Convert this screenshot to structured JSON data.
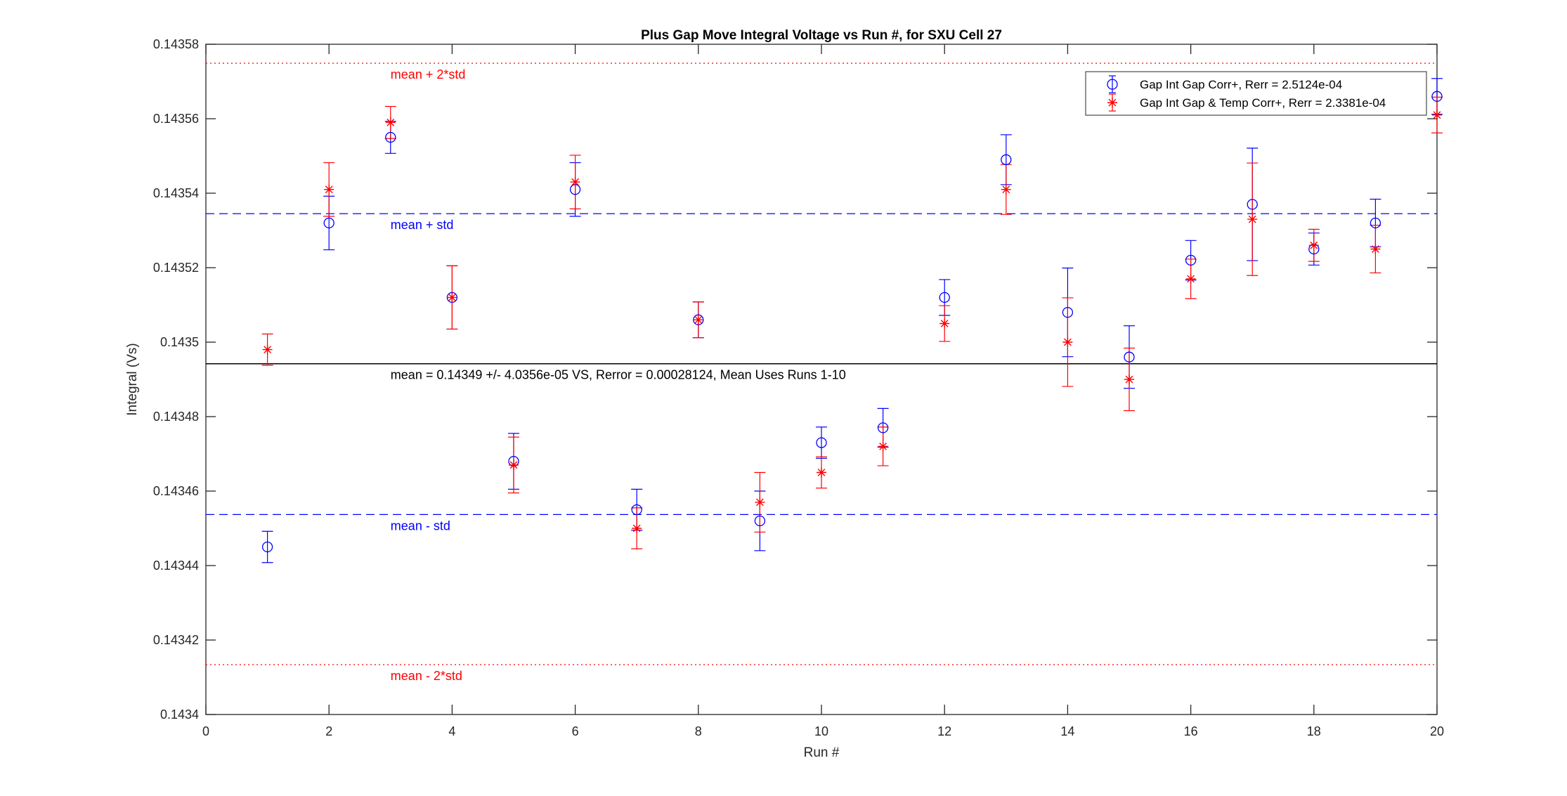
{
  "chart_data": {
    "type": "scatter",
    "title": "Plus Gap Move Integral Voltage vs Run #, for SXU Cell 27",
    "xlabel": "Run #",
    "ylabel": "Integral (Vs)",
    "xlim": [
      0,
      20
    ],
    "ylim": [
      0.1434,
      0.14358
    ],
    "xticks": [
      0,
      2,
      4,
      6,
      8,
      10,
      12,
      14,
      16,
      18,
      20
    ],
    "yticks": [
      0.1434,
      0.14342,
      0.14344,
      0.14346,
      0.14348,
      0.1435,
      0.14352,
      0.14354,
      0.14356,
      0.14358
    ],
    "ytick_labels": [
      "0.1434",
      "0.14342",
      "0.14344",
      "0.14346",
      "0.14348",
      "0.1435",
      "0.14352",
      "0.14354",
      "0.14356",
      "0.14358"
    ],
    "grid": false,
    "legend_position": "top-right",
    "series": [
      {
        "name": "Gap Int Gap Corr+, Rerr = 2.5124e-04",
        "color": "#0000ff",
        "marker": "circle",
        "x": [
          1,
          2,
          3,
          4,
          5,
          6,
          7,
          8,
          9,
          10,
          11,
          12,
          13,
          14,
          15,
          16,
          17,
          18,
          19,
          20
        ],
        "y": [
          0.143445,
          0.143532,
          0.143555,
          0.143512,
          0.143468,
          0.143541,
          0.143455,
          0.143506,
          0.143452,
          0.143473,
          0.143477,
          0.143512,
          0.143549,
          0.143508,
          0.143496,
          0.143522,
          0.143537,
          0.143525,
          0.143532,
          0.143566
        ],
        "err": [
          4.2e-06,
          7.2e-06,
          4.3e-06,
          8.5e-06,
          7.5e-06,
          7.2e-06,
          5.5e-06,
          4.8e-06,
          8e-06,
          4.2e-06,
          5.2e-06,
          4.8e-06,
          6.7e-06,
          1.19e-05,
          8.4e-06,
          5.3e-06,
          1.51e-05,
          4.3e-06,
          6.4e-06,
          4.8e-06
        ]
      },
      {
        "name": "Gap Int Gap & Temp  Corr+, Rerr = 2.3381e-04",
        "color": "#ff0000",
        "marker": "star",
        "x": [
          1,
          2,
          3,
          4,
          5,
          6,
          7,
          8,
          9,
          10,
          11,
          12,
          13,
          14,
          15,
          16,
          17,
          18,
          19,
          20
        ],
        "y": [
          0.143498,
          0.143541,
          0.143559,
          0.143512,
          0.143467,
          0.143543,
          0.14345,
          0.143506,
          0.143457,
          0.143465,
          0.143472,
          0.143505,
          0.143541,
          0.1435,
          0.14349,
          0.143517,
          0.143533,
          0.143526,
          0.143525,
          0.143561
        ]
      }
    ],
    "reference_lines": [
      {
        "y": 0.1434942,
        "style": "solid",
        "color": "#000000",
        "label": "mean = 0.14349 +/- 4.0356e-05 VS, Rerror = 0.00028124, Mean Uses Runs 1-10",
        "label_x": 3
      },
      {
        "y": 0.1435345,
        "style": "dashed",
        "color": "#0000ff",
        "label": "mean + std",
        "label_x": 3
      },
      {
        "y": 0.1434537,
        "style": "dashed",
        "color": "#0000ff",
        "label": "mean - std",
        "label_x": 3
      },
      {
        "y": 0.1435749,
        "style": "dotted",
        "color": "#ff0000",
        "label": "mean + 2*std",
        "label_x": 3
      },
      {
        "y": 0.1434134,
        "style": "dotted",
        "color": "#ff0000",
        "label": "mean - 2*std",
        "label_x": 3
      }
    ]
  }
}
